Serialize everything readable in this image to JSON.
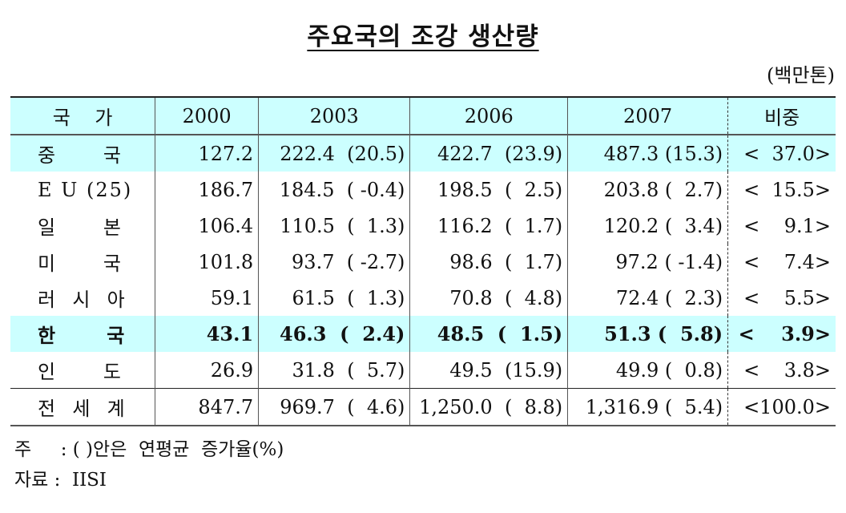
{
  "title": "주요국의 조강 생산량",
  "unit": "(백만톤)",
  "table": {
    "headers": [
      "국    가",
      "2000",
      "2003",
      "2006",
      "2007",
      "비중"
    ],
    "rows": [
      {
        "country": "중      국",
        "y2000": "127.2",
        "y2003": "222.4  (20.5)",
        "y2006": "422.7  (23.9)",
        "y2007": "487.3 (15.3)",
        "share": "<  37.0>",
        "highlight": true,
        "bold": false
      },
      {
        "country": "E U (25)",
        "y2000": "186.7",
        "y2003": "184.5  ( -0.4)",
        "y2006": "198.5  (  2.5)",
        "y2007": "203.8 (  2.7)",
        "share": "<  15.5>",
        "highlight": false,
        "bold": false
      },
      {
        "country": "일      본",
        "y2000": "106.4",
        "y2003": "110.5  (  1.3)",
        "y2006": "116.2  (  1.7)",
        "y2007": "120.2 (  3.4)",
        "share": "<    9.1>",
        "highlight": false,
        "bold": false
      },
      {
        "country": "미      국",
        "y2000": "101.8",
        "y2003": "93.7  ( -2.7)",
        "y2006": "98.6  (  1.7)",
        "y2007": "97.2 ( -1.4)",
        "share": "<    7.4>",
        "highlight": false,
        "bold": false
      },
      {
        "country": "러  시  아",
        "y2000": "59.1",
        "y2003": "61.5  (  1.3)",
        "y2006": "70.8  (  4.8)",
        "y2007": "72.4 (  2.3)",
        "share": "<    5.5>",
        "highlight": false,
        "bold": false
      },
      {
        "country": "한      국",
        "y2000": "43.1",
        "y2003": "46.3  (  2.4)",
        "y2006": "48.5  (  1.5)",
        "y2007": "51.3 (  5.8)",
        "share": "<    3.9>",
        "highlight": true,
        "bold": true
      },
      {
        "country": "인      도",
        "y2000": "26.9",
        "y2003": "31.8  (  5.7)",
        "y2006": "49.5  (15.9)",
        "y2007": "49.9 (  0.8)",
        "share": "<    3.8>",
        "highlight": false,
        "bold": false
      },
      {
        "country": "전  세  계",
        "y2000": "847.7",
        "y2003": "969.7  (  4.6)",
        "y2006": "1,250.0  (  8.8)",
        "y2007": "1,316.9 (  5.4)",
        "share": "<100.0>",
        "highlight": false,
        "bold": false
      }
    ]
  },
  "notes": {
    "note": "주     : ( )안은  연평균  증가율(%)",
    "source": "자료 :  IISI"
  },
  "colors": {
    "highlight": "#ccffff"
  }
}
